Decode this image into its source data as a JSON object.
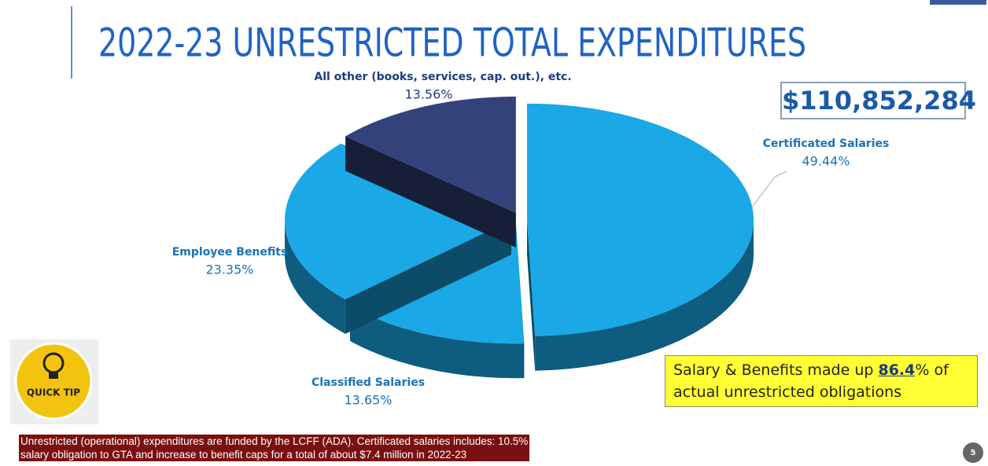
{
  "chart_data": {
    "type": "pie",
    "title": "2022-23 UNRESTRICTED TOTAL EXPENDITURES",
    "categories": [
      "Certificated Salaries",
      "Classified Salaries",
      "Employee Benefits",
      "All other (books, services, cap. out.), etc."
    ],
    "values": [
      49.44,
      13.65,
      23.35,
      13.56
    ],
    "value_labels": [
      "49.44%",
      "13.65%",
      "23.35%",
      "13.56%"
    ],
    "colors": [
      "#1aa8e6",
      "#1aa8e6",
      "#1aa8e6",
      "#34427c"
    ]
  },
  "total": "$110,852,284",
  "callout": {
    "before": "Salary & Benefits made up ",
    "highlight": "86.4",
    "after": "% of",
    "line2": "actual unrestricted obligations"
  },
  "badge": "QUICK TIP",
  "footnote": [
    "Unrestricted (operational) expenditures are funded by the LCFF (ADA).  Certificated salaries includes: 10.5%",
    "salary obligation to GTA and increase to benefit caps for a total of about $7.4 million in 2022-23"
  ],
  "page_number": "5"
}
